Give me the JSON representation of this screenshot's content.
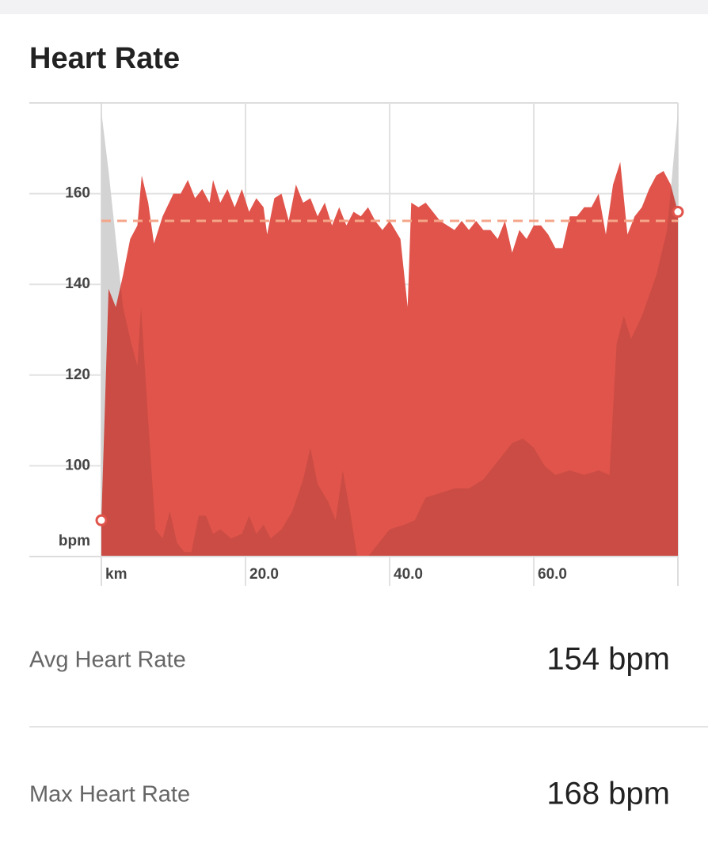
{
  "title": "Heart Rate",
  "chart_data": {
    "type": "area",
    "x_label": "km",
    "y_label": "bpm",
    "xlim": [
      0,
      80
    ],
    "xticks": [
      {
        "value": 20,
        "label": "20.0"
      },
      {
        "value": 40,
        "label": "40.0"
      },
      {
        "value": 60,
        "label": "60.0"
      }
    ],
    "ylim": [
      80,
      180
    ],
    "yticks": [
      100,
      120,
      140,
      160
    ],
    "grid": true,
    "average": 154,
    "average_color": "#f4a58a",
    "series": [
      {
        "color": "#e8e8e8",
        "x": [
          0,
          1,
          2,
          3,
          4,
          5,
          5.5,
          6.5,
          7.5,
          8.5,
          9.5,
          10.5,
          11.5,
          12.5,
          13.5,
          14.5,
          15.5,
          16.5,
          18,
          19.5,
          20.5,
          21.5,
          22.5,
          23.5,
          25,
          26.5,
          28,
          29,
          30,
          31.5,
          32.5,
          33.5,
          34.5,
          35.5,
          37,
          38.5,
          40,
          42,
          43.5,
          45,
          47,
          49,
          51,
          53,
          55,
          57,
          58.5,
          60,
          61.5,
          63,
          65,
          67,
          69,
          70.5,
          71.5,
          72.5,
          73.5,
          75,
          77,
          78.5,
          80
        ],
        "values": [
          178,
          165,
          150,
          135,
          128,
          122,
          135,
          110,
          86,
          84,
          90,
          83,
          81,
          81,
          89,
          89,
          85,
          86,
          84,
          85,
          89,
          85,
          87,
          84,
          86,
          90,
          97,
          104,
          96,
          92,
          88,
          99,
          90,
          80,
          80,
          83,
          86,
          87,
          88,
          93,
          94,
          95,
          95,
          97,
          101,
          105,
          106,
          104,
          100,
          98,
          99,
          98,
          99,
          98,
          127,
          133,
          128,
          133,
          142,
          152,
          178
        ]
      },
      {
        "color": "#e0544b",
        "x": [
          0,
          1,
          2,
          3,
          4,
          5,
          5.6,
          6.5,
          7.3,
          8.5,
          10,
          11,
          12,
          13,
          14,
          15,
          15.5,
          16.5,
          17.5,
          18.5,
          19.5,
          20.5,
          21.5,
          22.5,
          23,
          24,
          25,
          26,
          27,
          28,
          29,
          30,
          31,
          32,
          33,
          34,
          35,
          36,
          37,
          38,
          39,
          40,
          41.5,
          42.5,
          43,
          44,
          45,
          46,
          47,
          48,
          49,
          50,
          51,
          52,
          53,
          54,
          55,
          56,
          57,
          58,
          59,
          60,
          61,
          62,
          63,
          64,
          65,
          66,
          67,
          68,
          69,
          70,
          71,
          72,
          73,
          74,
          75,
          76,
          77,
          78,
          79,
          80
        ],
        "values": [
          88,
          139,
          135,
          142,
          150,
          153,
          164,
          158,
          149,
          155,
          160,
          160,
          163,
          159,
          161,
          158,
          163,
          158,
          161,
          157,
          161,
          156,
          159,
          157,
          151,
          159,
          160,
          154,
          162,
          158,
          159,
          155,
          158,
          153,
          157,
          153,
          156,
          155,
          157,
          154,
          152,
          154,
          150,
          135,
          158,
          157,
          158,
          156,
          154,
          153,
          152,
          154,
          152,
          154,
          152,
          152,
          150,
          154,
          147,
          152,
          150,
          153,
          153,
          151,
          148,
          148,
          155,
          155,
          157,
          157,
          160,
          151,
          162,
          167,
          151,
          155,
          157,
          161,
          164,
          165,
          162,
          156
        ]
      }
    ]
  },
  "stats": [
    {
      "label": "Avg Heart Rate",
      "value": "154 bpm"
    },
    {
      "label": "Max Heart Rate",
      "value": "168 bpm"
    }
  ]
}
